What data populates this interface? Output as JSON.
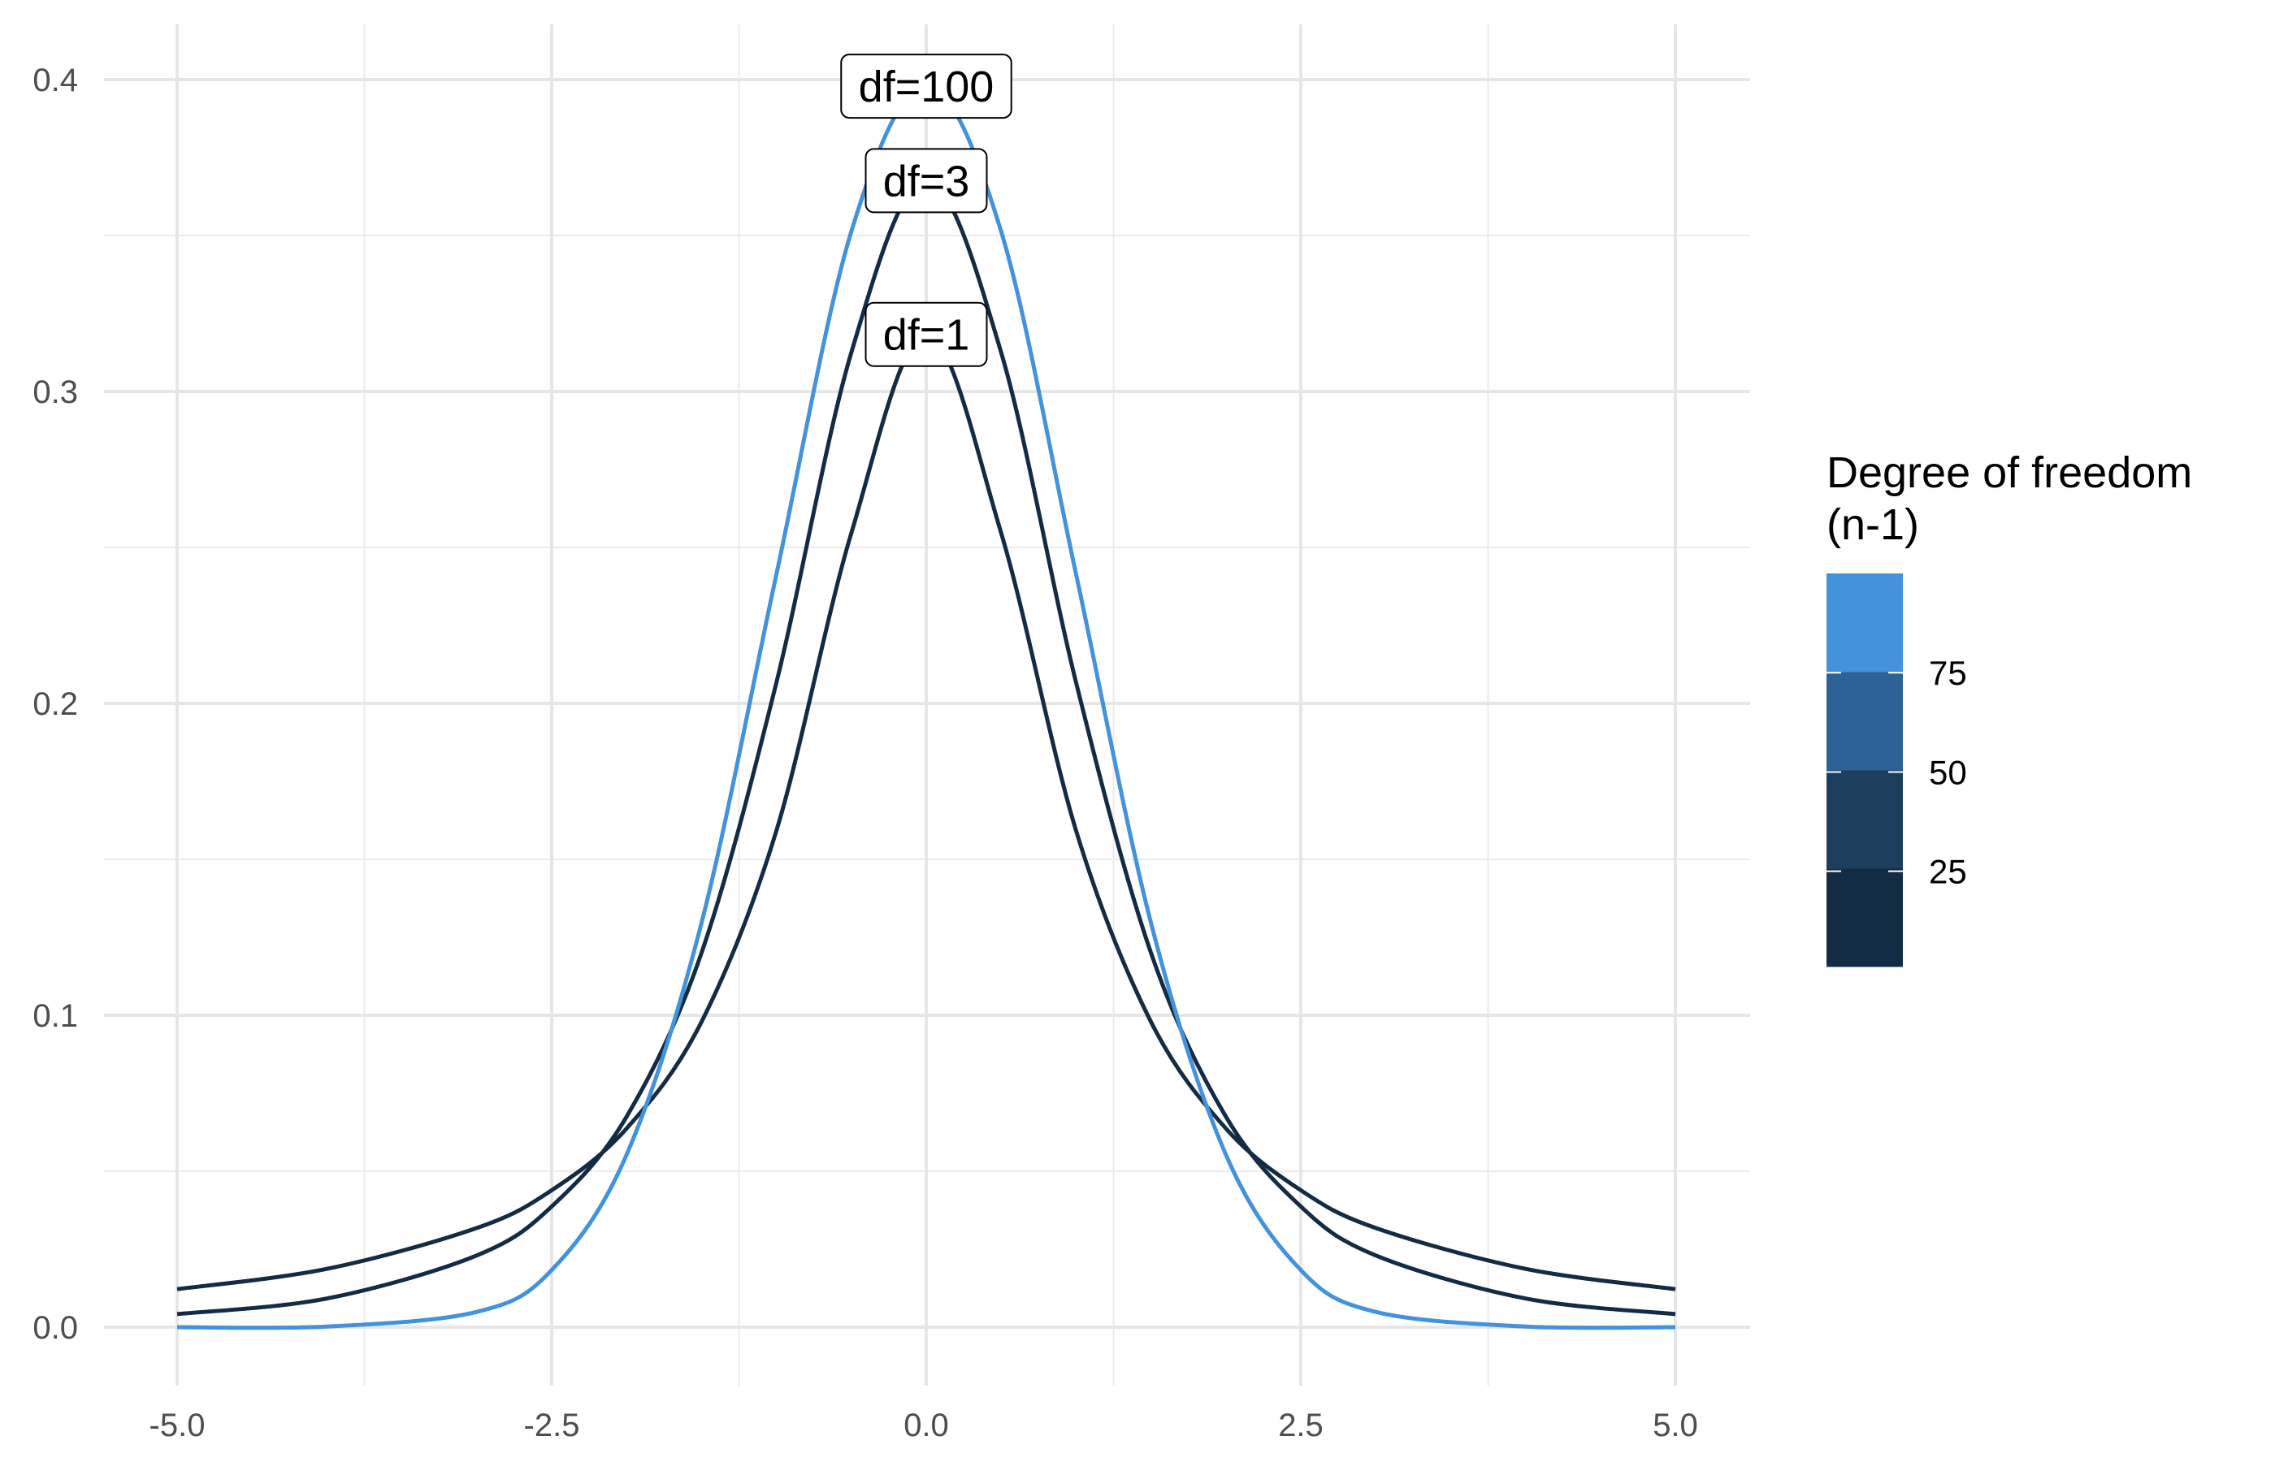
{
  "chart_data": {
    "type": "line",
    "title": "",
    "xlabel": "",
    "ylabel": "",
    "xlim": [
      -5.0,
      5.0
    ],
    "ylim": [
      0.0,
      0.4
    ],
    "x_ticks": [
      "-5.0",
      "-2.5",
      "0.0",
      "2.5",
      "5.0"
    ],
    "y_ticks": [
      "0.0",
      "0.1",
      "0.2",
      "0.3",
      "0.4"
    ],
    "grid": true,
    "x": [
      -5.0,
      -4.0,
      -3.0,
      -2.5,
      -2.0,
      -1.5,
      -1.0,
      -0.5,
      0.0,
      0.5,
      1.0,
      1.5,
      2.0,
      2.5,
      3.0,
      4.0,
      5.0
    ],
    "series": [
      {
        "label": "df=1",
        "df": 1,
        "color": "#132B43",
        "values": [
          0.0122,
          0.0187,
          0.0318,
          0.0439,
          0.0637,
          0.0979,
          0.1592,
          0.2546,
          0.3183,
          0.2546,
          0.1592,
          0.0979,
          0.0637,
          0.0439,
          0.0318,
          0.0187,
          0.0122
        ]
      },
      {
        "label": "df=3",
        "df": 3,
        "color": "#132B43",
        "values": [
          0.0042,
          0.0092,
          0.023,
          0.0387,
          0.0675,
          0.12,
          0.2067,
          0.3125,
          0.3676,
          0.3125,
          0.2067,
          0.12,
          0.0675,
          0.0387,
          0.023,
          0.0092,
          0.0042
        ]
      },
      {
        "label": "df=100",
        "df": 100,
        "color": "#4292DC",
        "values": [
          0.0,
          0.0002,
          0.0049,
          0.0183,
          0.0553,
          0.1296,
          0.2414,
          0.3513,
          0.3979,
          0.3513,
          0.2414,
          0.1296,
          0.0553,
          0.0183,
          0.0049,
          0.0002,
          0.0
        ]
      }
    ],
    "legend": {
      "title_line1": "Degree of freedom",
      "title_line2": "(n-1)",
      "position": "right",
      "ticks": [
        {
          "value": 25,
          "label": "25"
        },
        {
          "value": 50,
          "label": "50"
        },
        {
          "value": 75,
          "label": "75"
        }
      ],
      "range": [
        1,
        100
      ],
      "colors": [
        "#132B43",
        "#1E3E5E",
        "#2D6296",
        "#4292DC"
      ]
    }
  }
}
